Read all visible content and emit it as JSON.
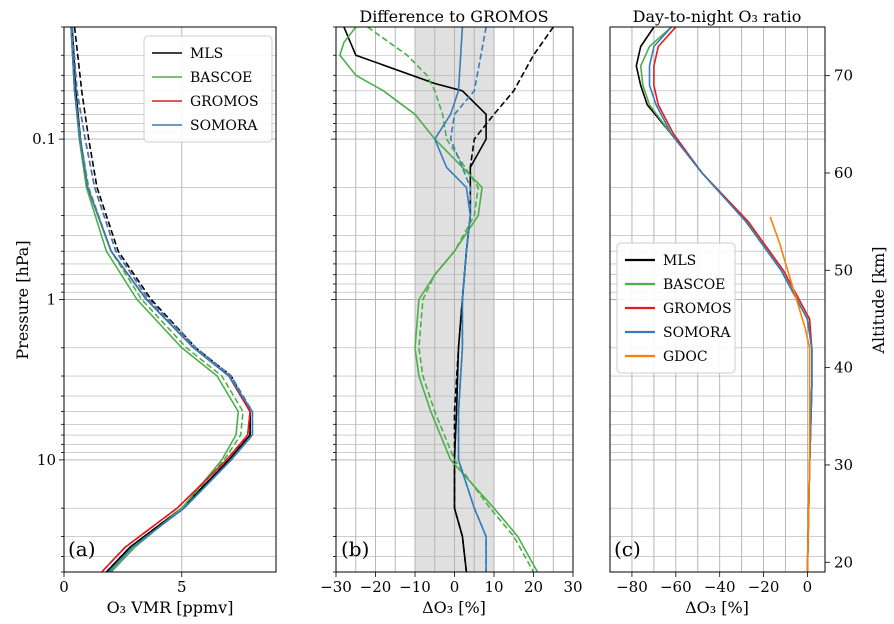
{
  "chart_data": [
    {
      "id": "a",
      "type": "line",
      "panel_label": "(a)",
      "xlabel": "O₃ VMR [ppmv]",
      "ylabel": "Pressure [hPa]",
      "yscale": "log",
      "yaxis_inverted": true,
      "xlim": [
        0,
        9
      ],
      "ylim": [
        50,
        0.02
      ],
      "x_ticks": [
        0,
        5
      ],
      "y_ticks": [
        0.1,
        1,
        10
      ],
      "y_tick_labels": [
        "0.1",
        "1",
        "10"
      ],
      "grid": true,
      "legend": {
        "position": "top-right",
        "entries": [
          "MLS",
          "BASCOE",
          "GROMOS",
          "SOMORA"
        ]
      },
      "series": [
        {
          "name": "MLS",
          "color": "#000000",
          "style": "solid",
          "y": [
            0.02,
            0.05,
            0.1,
            0.2,
            0.5,
            1,
            2,
            3,
            5,
            7,
            10,
            20,
            35,
            50
          ],
          "x": [
            0.35,
            0.5,
            0.7,
            1.0,
            2.0,
            3.5,
            5.5,
            7.0,
            7.9,
            7.9,
            7.0,
            5.0,
            2.8,
            1.8
          ]
        },
        {
          "name": "MLS",
          "color": "#000000",
          "style": "dashed",
          "y": [
            0.02,
            0.05,
            0.1,
            0.2,
            0.5,
            1,
            2,
            3,
            5,
            7,
            10,
            20,
            35,
            50
          ],
          "x": [
            0.45,
            0.75,
            1.05,
            1.4,
            2.3,
            3.7,
            5.6,
            7.1,
            7.9,
            7.9,
            7.0,
            5.0,
            2.8,
            1.8
          ]
        },
        {
          "name": "BASCOE",
          "color": "#4daf4a",
          "style": "solid",
          "y": [
            0.02,
            0.05,
            0.1,
            0.2,
            0.5,
            1,
            2,
            3,
            5,
            7,
            10,
            20,
            35,
            50
          ],
          "x": [
            0.3,
            0.45,
            0.65,
            0.95,
            1.8,
            3.1,
            5.0,
            6.5,
            7.4,
            7.3,
            6.7,
            5.0,
            3.0,
            2.0
          ]
        },
        {
          "name": "BASCOE",
          "color": "#4daf4a",
          "style": "dashed",
          "y": [
            0.02,
            0.05,
            0.1,
            0.2,
            0.5,
            1,
            2,
            3,
            5,
            7,
            10,
            20,
            35,
            50
          ],
          "x": [
            0.3,
            0.45,
            0.7,
            1.05,
            2.0,
            3.3,
            5.2,
            6.7,
            7.6,
            7.5,
            6.8,
            5.0,
            3.0,
            2.0
          ]
        },
        {
          "name": "GROMOS",
          "color": "#e41a1c",
          "style": "solid",
          "y": [
            0.02,
            0.05,
            0.1,
            0.2,
            0.5,
            1,
            2,
            3,
            5,
            7,
            10,
            20,
            35,
            50
          ],
          "x": [
            0.3,
            0.45,
            0.68,
            1.0,
            2.0,
            3.5,
            5.5,
            7.0,
            7.9,
            7.8,
            6.9,
            4.8,
            2.6,
            1.6
          ]
        },
        {
          "name": "GROMOS",
          "color": "#e41a1c",
          "style": "dashed",
          "y": [
            0.02,
            0.05,
            0.1,
            0.2,
            0.5,
            1,
            2,
            3,
            5,
            7,
            10,
            20,
            35,
            50
          ],
          "x": [
            0.35,
            0.55,
            0.9,
            1.3,
            2.2,
            3.6,
            5.6,
            7.1,
            7.9,
            7.8,
            6.9,
            4.8,
            2.6,
            1.6
          ]
        },
        {
          "name": "SOMORA",
          "color": "#377eb8",
          "style": "solid",
          "y": [
            0.02,
            0.05,
            0.1,
            0.2,
            0.5,
            1,
            2,
            3,
            5,
            7,
            10,
            20,
            35,
            50
          ],
          "x": [
            0.3,
            0.45,
            0.68,
            1.0,
            2.0,
            3.5,
            5.5,
            7.0,
            8.0,
            8.0,
            7.1,
            5.1,
            2.9,
            1.9
          ]
        },
        {
          "name": "SOMORA",
          "color": "#377eb8",
          "style": "dashed",
          "y": [
            0.02,
            0.05,
            0.1,
            0.2,
            0.5,
            1,
            2,
            3,
            5,
            7,
            10,
            20,
            35,
            50
          ],
          "x": [
            0.35,
            0.55,
            0.9,
            1.3,
            2.2,
            3.6,
            5.6,
            7.1,
            8.0,
            8.0,
            7.1,
            5.1,
            2.9,
            1.9
          ]
        }
      ]
    },
    {
      "id": "b",
      "type": "line",
      "panel_label": "(b)",
      "title": "Difference to GROMOS",
      "xlabel": "ΔO₃ [%]",
      "yscale": "log",
      "yaxis_inverted": true,
      "xlim": [
        -30,
        30
      ],
      "ylim": [
        50,
        0.02
      ],
      "x_ticks": [
        -30,
        -20,
        -10,
        0,
        10,
        20,
        30
      ],
      "x_tick_labels": [
        "−30",
        "−20",
        "−10",
        "0",
        "10",
        "20",
        "30"
      ],
      "shaded_band_x": [
        -10,
        10
      ],
      "grid": true,
      "series": [
        {
          "name": "MLS",
          "color": "#000000",
          "style": "solid",
          "y": [
            0.02,
            0.03,
            0.045,
            0.05,
            0.07,
            0.1,
            0.15,
            0.3,
            0.5,
            1,
            2,
            5,
            10,
            20,
            30,
            50
          ],
          "x": [
            -28,
            -25,
            -5,
            2,
            8,
            8,
            4,
            4,
            3,
            2,
            1,
            0.5,
            0,
            0,
            2,
            3
          ]
        },
        {
          "name": "MLS",
          "color": "#000000",
          "style": "dashed",
          "y": [
            0.02,
            0.03,
            0.05,
            0.07,
            0.1,
            0.15,
            0.3,
            0.5,
            1,
            2,
            5,
            10,
            20,
            30,
            50
          ],
          "x": [
            25,
            20,
            15,
            10,
            5,
            4,
            4,
            3,
            2,
            1,
            0,
            0,
            0,
            2,
            3
          ]
        },
        {
          "name": "BASCOE",
          "color": "#4daf4a",
          "style": "solid",
          "y": [
            0.02,
            0.025,
            0.03,
            0.04,
            0.05,
            0.07,
            0.1,
            0.2,
            0.3,
            0.5,
            0.7,
            1,
            2,
            3,
            5,
            10,
            20,
            30,
            50
          ],
          "x": [
            -25,
            -28,
            -29,
            -25,
            -18,
            -10,
            -5,
            7,
            6,
            0,
            -5,
            -9,
            -10,
            -9,
            -6,
            -1,
            10,
            16,
            21
          ]
        },
        {
          "name": "BASCOE",
          "color": "#4daf4a",
          "style": "dashed",
          "y": [
            0.02,
            0.03,
            0.04,
            0.05,
            0.07,
            0.1,
            0.2,
            0.3,
            0.5,
            0.7,
            1,
            2,
            3,
            5,
            10,
            20,
            30,
            50
          ],
          "x": [
            -22,
            -12,
            -7,
            -5,
            -3,
            -2,
            6,
            5,
            0,
            -5,
            -8,
            -9,
            -8,
            -5,
            0,
            9,
            15,
            20
          ]
        },
        {
          "name": "SOMORA",
          "color": "#377eb8",
          "style": "solid",
          "y": [
            0.02,
            0.05,
            0.07,
            0.1,
            0.15,
            0.2,
            0.3,
            0.5,
            1,
            2,
            5,
            10,
            20,
            30,
            50
          ],
          "x": [
            2,
            1,
            -1,
            -5,
            -2,
            3,
            4,
            3,
            2,
            2,
            1,
            1,
            5,
            8,
            8
          ]
        },
        {
          "name": "SOMORA",
          "color": "#377eb8",
          "style": "dashed",
          "y": [
            0.02,
            0.05,
            0.07,
            0.1,
            0.15,
            0.2,
            0.3,
            0.5,
            1,
            2,
            5,
            10,
            20,
            30,
            50
          ],
          "x": [
            8,
            5,
            0,
            -1,
            2,
            4,
            4,
            3,
            2,
            2,
            1,
            1,
            5,
            8,
            8
          ]
        }
      ]
    },
    {
      "id": "c",
      "type": "line",
      "panel_label": "(c)",
      "title": "Day-to-night O₃ ratio",
      "xlabel": "ΔO₃ [%]",
      "ylabel_right": "Altitude [km]",
      "xlim": [
        -90,
        8
      ],
      "ylim": [
        19,
        75
      ],
      "x_ticks": [
        -80,
        -60,
        -40,
        -20,
        0
      ],
      "x_tick_labels": [
        "−80",
        "−60",
        "−40",
        "−20",
        "0"
      ],
      "y_ticks_right": [
        20,
        30,
        40,
        50,
        60,
        70
      ],
      "grid": true,
      "legend": {
        "position": "center-left",
        "entries": [
          "MLS",
          "BASCOE",
          "GROMOS",
          "SOMORA",
          "GDOC"
        ]
      },
      "series": [
        {
          "name": "MLS",
          "color": "#000000",
          "style": "solid",
          "y": [
            75,
            73,
            71,
            69,
            67,
            64,
            60,
            55,
            50,
            45,
            42,
            38,
            30,
            19
          ],
          "x": [
            -70,
            -76,
            -78,
            -76,
            -73,
            -62,
            -48,
            -28,
            -12,
            0,
            2,
            2,
            1,
            0
          ]
        },
        {
          "name": "BASCOE",
          "color": "#4daf4a",
          "style": "solid",
          "y": [
            75,
            73,
            71,
            69,
            67,
            64,
            60,
            55,
            50,
            45,
            42,
            38,
            30,
            19
          ],
          "x": [
            -62,
            -72,
            -76,
            -75,
            -72,
            -62,
            -48,
            -28,
            -12,
            0,
            2,
            2,
            1,
            0
          ]
        },
        {
          "name": "GROMOS",
          "color": "#e41a1c",
          "style": "solid",
          "y": [
            75,
            73,
            71,
            69,
            67,
            64,
            60,
            55,
            50,
            45,
            42,
            38,
            30,
            19
          ],
          "x": [
            -60,
            -68,
            -70,
            -70,
            -68,
            -61,
            -48,
            -27,
            -11,
            1,
            2,
            2,
            1,
            0
          ]
        },
        {
          "name": "SOMORA",
          "color": "#377eb8",
          "style": "solid",
          "y": [
            75,
            73,
            71,
            69,
            67,
            64,
            60,
            55,
            50,
            45,
            42,
            38,
            30,
            19
          ],
          "x": [
            -62,
            -70,
            -72,
            -72,
            -69,
            -62,
            -48,
            -28,
            -12,
            0,
            2,
            2,
            1,
            0
          ]
        },
        {
          "name": "GDOC",
          "color": "#ff7f00",
          "style": "solid",
          "y": [
            55.5,
            53,
            50,
            47,
            44,
            42,
            38,
            30,
            19
          ],
          "x": [
            -17,
            -13,
            -9,
            -5,
            -1,
            1,
            1,
            1,
            0
          ]
        }
      ]
    }
  ]
}
